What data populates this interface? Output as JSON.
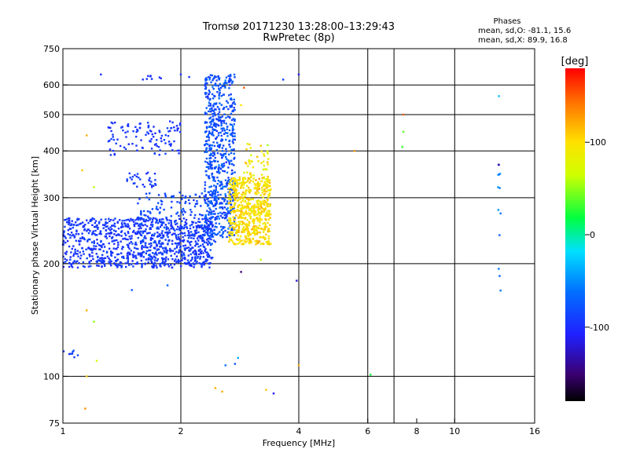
{
  "header": {
    "line1": "Tromsø 20171230 13:28:00–13:29:43",
    "line2": "RwPretec (8p)"
  },
  "stats": {
    "title": "Phases",
    "o_line": "mean, sd,O: -81.1, 15.6",
    "x_line": "mean, sd,X:  89.9, 16.8"
  },
  "colorbar": {
    "unit": "[deg]",
    "ticks": [
      {
        "value": 100,
        "label": "100"
      },
      {
        "value": 0,
        "label": "0"
      },
      {
        "value": -100,
        "label": "-100"
      }
    ],
    "range": [
      -180,
      180
    ]
  },
  "chart_data": {
    "type": "scatter",
    "xlabel": "Frequency [MHz]",
    "ylabel": "Stationary phase Virtual Height [km]",
    "xscale": "log",
    "yscale": "log",
    "xlim": [
      1,
      16
    ],
    "ylim": [
      75,
      750
    ],
    "xticks": [
      {
        "value": 1,
        "label": "1"
      },
      {
        "value": 2,
        "label": "2"
      },
      {
        "value": 4,
        "label": "4"
      },
      {
        "value": 6,
        "label": "6"
      },
      {
        "value": 8,
        "label": "8"
      },
      {
        "value": 10,
        "label": "10"
      },
      {
        "value": 16,
        "label": "16"
      }
    ],
    "yticks": [
      {
        "value": 75,
        "label": "75"
      },
      {
        "value": 100,
        "label": "100"
      },
      {
        "value": 200,
        "label": "200"
      },
      {
        "value": 300,
        "label": "300"
      },
      {
        "value": 400,
        "label": "400"
      },
      {
        "value": 500,
        "label": "500"
      },
      {
        "value": 600,
        "label": "600"
      },
      {
        "value": 750,
        "label": "750"
      }
    ],
    "grid_x": [
      2,
      4,
      6,
      7,
      10
    ],
    "grid_y": [
      100,
      200,
      300,
      400,
      500,
      600
    ],
    "clusters": [
      {
        "xmin": 1.0,
        "xmax": 2.4,
        "ymin": 195,
        "ymax": 265,
        "phase": -95,
        "phase_sd": 8,
        "n": 900
      },
      {
        "xmin": 1.55,
        "xmax": 2.45,
        "ymin": 205,
        "ymax": 310,
        "phase": -85,
        "phase_sd": 12,
        "n": 250
      },
      {
        "xmin": 2.3,
        "xmax": 2.75,
        "ymin": 235,
        "ymax": 640,
        "phase": -80,
        "phase_sd": 18,
        "n": 700
      },
      {
        "xmin": 2.65,
        "xmax": 3.4,
        "ymin": 225,
        "ymax": 340,
        "phase": 100,
        "phase_sd": 20,
        "n": 600
      },
      {
        "xmin": 2.9,
        "xmax": 3.35,
        "ymin": 340,
        "ymax": 420,
        "phase": 90,
        "phase_sd": 25,
        "n": 40
      },
      {
        "xmin": 1.3,
        "xmax": 2.0,
        "ymin": 390,
        "ymax": 480,
        "phase": -95,
        "phase_sd": 8,
        "n": 110
      },
      {
        "xmin": 1.45,
        "xmax": 1.75,
        "ymin": 320,
        "ymax": 350,
        "phase": -92,
        "phase_sd": 8,
        "n": 30
      },
      {
        "xmin": 1.6,
        "xmax": 1.8,
        "ymin": 620,
        "ymax": 640,
        "phase": -100,
        "phase_sd": 5,
        "n": 8
      },
      {
        "xmin": 1.0,
        "xmax": 1.1,
        "ymin": 112,
        "ymax": 118,
        "phase": -90,
        "phase_sd": 10,
        "n": 8
      },
      {
        "xmin": 12.9,
        "xmax": 13.1,
        "ymin": 160,
        "ymax": 640,
        "phase": -60,
        "phase_sd": 60,
        "n": 14
      }
    ],
    "points": [
      {
        "x": 1.25,
        "y": 640,
        "phase": -100
      },
      {
        "x": 2.0,
        "y": 640,
        "phase": -100
      },
      {
        "x": 2.1,
        "y": 630,
        "phase": -95
      },
      {
        "x": 1.15,
        "y": 440,
        "phase": 120
      },
      {
        "x": 1.12,
        "y": 355,
        "phase": 110
      },
      {
        "x": 1.2,
        "y": 320,
        "phase": 60
      },
      {
        "x": 1.15,
        "y": 150,
        "phase": 120
      },
      {
        "x": 1.2,
        "y": 140,
        "phase": 50
      },
      {
        "x": 1.22,
        "y": 110,
        "phase": 70
      },
      {
        "x": 1.15,
        "y": 100,
        "phase": 110
      },
      {
        "x": 1.14,
        "y": 82,
        "phase": 130
      },
      {
        "x": 1.85,
        "y": 175,
        "phase": -70
      },
      {
        "x": 1.5,
        "y": 170,
        "phase": -80
      },
      {
        "x": 2.45,
        "y": 93,
        "phase": 120
      },
      {
        "x": 2.55,
        "y": 91,
        "phase": 120
      },
      {
        "x": 2.6,
        "y": 107,
        "phase": -60
      },
      {
        "x": 2.75,
        "y": 108,
        "phase": -80
      },
      {
        "x": 2.8,
        "y": 112,
        "phase": -40
      },
      {
        "x": 2.85,
        "y": 190,
        "phase": -150
      },
      {
        "x": 3.3,
        "y": 92,
        "phase": 110
      },
      {
        "x": 3.45,
        "y": 90,
        "phase": -110
      },
      {
        "x": 3.2,
        "y": 205,
        "phase": 60
      },
      {
        "x": 3.95,
        "y": 180,
        "phase": -120
      },
      {
        "x": 4.0,
        "y": 107,
        "phase": 120
      },
      {
        "x": 2.9,
        "y": 590,
        "phase": 150
      },
      {
        "x": 2.85,
        "y": 530,
        "phase": 100
      },
      {
        "x": 5.55,
        "y": 400,
        "phase": 130
      },
      {
        "x": 6.1,
        "y": 101,
        "phase": 20
      },
      {
        "x": 7.4,
        "y": 500,
        "phase": 150
      },
      {
        "x": 7.4,
        "y": 450,
        "phase": 40
      },
      {
        "x": 7.35,
        "y": 410,
        "phase": 30
      },
      {
        "x": 4.0,
        "y": 640,
        "phase": -110
      },
      {
        "x": 3.65,
        "y": 620,
        "phase": -90
      }
    ]
  }
}
